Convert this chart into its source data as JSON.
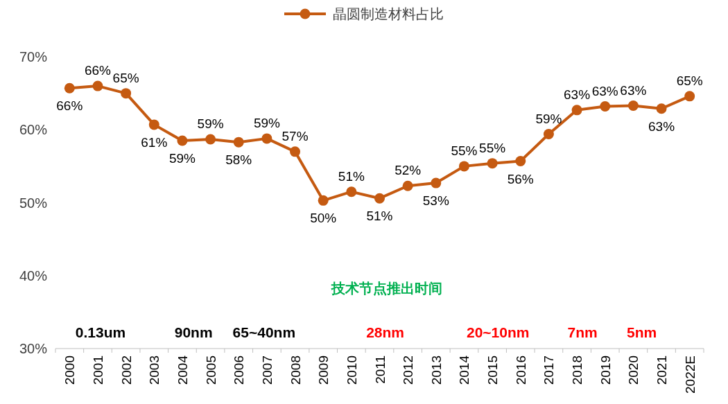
{
  "chart_data": {
    "type": "line",
    "categories": [
      "2000",
      "2001",
      "2002",
      "2003",
      "2004",
      "2005",
      "2006",
      "2007",
      "2008",
      "2009",
      "2010",
      "2011",
      "2012",
      "2013",
      "2014",
      "2015",
      "2016",
      "2017",
      "2018",
      "2019",
      "2020",
      "2021",
      "2022E"
    ],
    "series": [
      {
        "name": "晶圆制造材料占比",
        "color": "#c55a11",
        "values": [
          65.7,
          66.0,
          65.0,
          60.7,
          58.5,
          58.7,
          58.3,
          58.8,
          57.0,
          50.3,
          51.5,
          50.6,
          52.3,
          52.7,
          55.0,
          55.4,
          55.7,
          59.4,
          62.7,
          63.2,
          63.3,
          62.9,
          64.6
        ],
        "value_labels": [
          "66%",
          "66%",
          "65%",
          "61%",
          "59%",
          "59%",
          "58%",
          "59%",
          "57%",
          "50%",
          "51%",
          "51%",
          "52%",
          "53%",
          "55%",
          "55%",
          "56%",
          "59%",
          "63%",
          "63%",
          "63%",
          "63%",
          "65%"
        ]
      }
    ],
    "ylim": [
      30,
      70
    ],
    "yticks": [
      {
        "value": 30,
        "label": "30%"
      },
      {
        "value": 40,
        "label": "40%"
      },
      {
        "value": 50,
        "label": "50%"
      },
      {
        "value": 60,
        "label": "60%"
      },
      {
        "value": 70,
        "label": "70%"
      }
    ],
    "legend": "top",
    "marker": "circle",
    "annotations": [
      "技术节点推出时间",
      "0.13um",
      "90nm",
      "65~40nm",
      "28nm",
      "20~10nm",
      "7nm",
      "5nm"
    ]
  }
}
